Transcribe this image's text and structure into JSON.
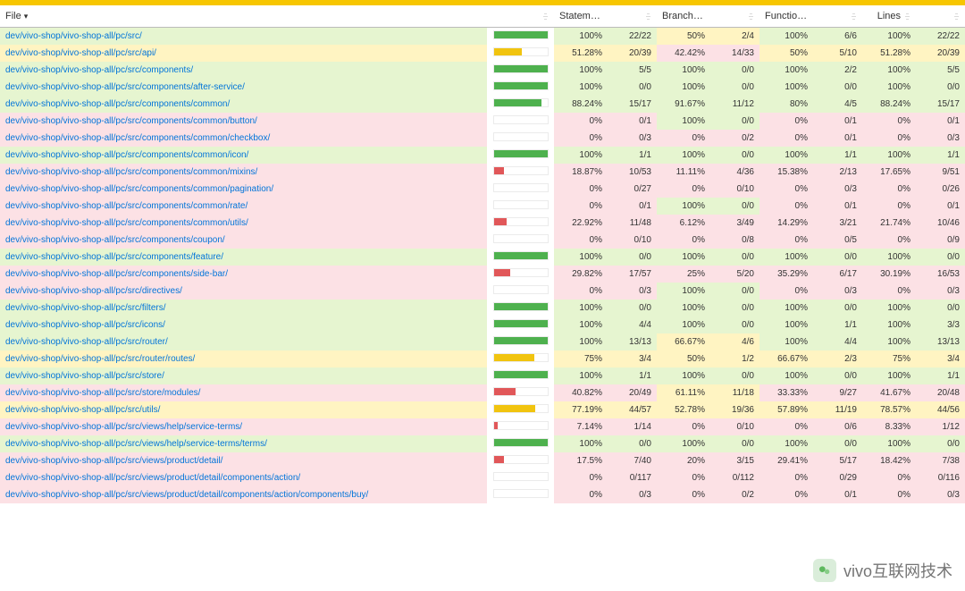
{
  "palette": {
    "high_bg": "#e6f5d0",
    "medium_bg": "#fff4c2",
    "low_bg": "#fce1e5",
    "bar_high": "#4eb14e",
    "bar_medium": "#f1c40f",
    "bar_low": "#e15759",
    "link": "#0074d9",
    "topbar": "#f7c600"
  },
  "thresholds": {
    "high": 80,
    "medium": 50
  },
  "columns": {
    "file": "File",
    "statements": "Statements",
    "branches": "Branches",
    "functions": "Functions",
    "lines": "Lines"
  },
  "sort_indicator": "▾",
  "rows": [
    {
      "file": "dev/vivo-shop/vivo-shop-all/pc/src/",
      "statements_pct": "100%",
      "statements_frac": "22/22",
      "branches_pct": "50%",
      "branches_frac": "2/4",
      "functions_pct": "100%",
      "functions_frac": "6/6",
      "lines_pct": "100%",
      "lines_frac": "22/22",
      "bar": 100,
      "cls": "high",
      "b_cls": "medium"
    },
    {
      "file": "dev/vivo-shop/vivo-shop-all/pc/src/api/",
      "statements_pct": "51.28%",
      "statements_frac": "20/39",
      "branches_pct": "42.42%",
      "branches_frac": "14/33",
      "functions_pct": "50%",
      "functions_frac": "5/10",
      "lines_pct": "51.28%",
      "lines_frac": "20/39",
      "bar": 51.28,
      "cls": "medium",
      "b_cls": "low"
    },
    {
      "file": "dev/vivo-shop/vivo-shop-all/pc/src/components/",
      "statements_pct": "100%",
      "statements_frac": "5/5",
      "branches_pct": "100%",
      "branches_frac": "0/0",
      "functions_pct": "100%",
      "functions_frac": "2/2",
      "lines_pct": "100%",
      "lines_frac": "5/5",
      "bar": 100,
      "cls": "high"
    },
    {
      "file": "dev/vivo-shop/vivo-shop-all/pc/src/components/after-service/",
      "statements_pct": "100%",
      "statements_frac": "0/0",
      "branches_pct": "100%",
      "branches_frac": "0/0",
      "functions_pct": "100%",
      "functions_frac": "0/0",
      "lines_pct": "100%",
      "lines_frac": "0/0",
      "bar": 100,
      "cls": "high"
    },
    {
      "file": "dev/vivo-shop/vivo-shop-all/pc/src/components/common/",
      "statements_pct": "88.24%",
      "statements_frac": "15/17",
      "branches_pct": "91.67%",
      "branches_frac": "11/12",
      "functions_pct": "80%",
      "functions_frac": "4/5",
      "lines_pct": "88.24%",
      "lines_frac": "15/17",
      "bar": 88.24,
      "cls": "high"
    },
    {
      "file": "dev/vivo-shop/vivo-shop-all/pc/src/components/common/button/",
      "statements_pct": "0%",
      "statements_frac": "0/1",
      "branches_pct": "100%",
      "branches_frac": "0/0",
      "functions_pct": "0%",
      "functions_frac": "0/1",
      "lines_pct": "0%",
      "lines_frac": "0/1",
      "bar": 0,
      "cls": "low",
      "b_cls": "high"
    },
    {
      "file": "dev/vivo-shop/vivo-shop-all/pc/src/components/common/checkbox/",
      "statements_pct": "0%",
      "statements_frac": "0/3",
      "branches_pct": "0%",
      "branches_frac": "0/2",
      "functions_pct": "0%",
      "functions_frac": "0/1",
      "lines_pct": "0%",
      "lines_frac": "0/3",
      "bar": 0,
      "cls": "low"
    },
    {
      "file": "dev/vivo-shop/vivo-shop-all/pc/src/components/common/icon/",
      "statements_pct": "100%",
      "statements_frac": "1/1",
      "branches_pct": "100%",
      "branches_frac": "0/0",
      "functions_pct": "100%",
      "functions_frac": "1/1",
      "lines_pct": "100%",
      "lines_frac": "1/1",
      "bar": 100,
      "cls": "high"
    },
    {
      "file": "dev/vivo-shop/vivo-shop-all/pc/src/components/common/mixins/",
      "statements_pct": "18.87%",
      "statements_frac": "10/53",
      "branches_pct": "11.11%",
      "branches_frac": "4/36",
      "functions_pct": "15.38%",
      "functions_frac": "2/13",
      "lines_pct": "17.65%",
      "lines_frac": "9/51",
      "bar": 18.87,
      "cls": "low"
    },
    {
      "file": "dev/vivo-shop/vivo-shop-all/pc/src/components/common/pagination/",
      "statements_pct": "0%",
      "statements_frac": "0/27",
      "branches_pct": "0%",
      "branches_frac": "0/10",
      "functions_pct": "0%",
      "functions_frac": "0/3",
      "lines_pct": "0%",
      "lines_frac": "0/26",
      "bar": 0,
      "cls": "low"
    },
    {
      "file": "dev/vivo-shop/vivo-shop-all/pc/src/components/common/rate/",
      "statements_pct": "0%",
      "statements_frac": "0/1",
      "branches_pct": "100%",
      "branches_frac": "0/0",
      "functions_pct": "0%",
      "functions_frac": "0/1",
      "lines_pct": "0%",
      "lines_frac": "0/1",
      "bar": 0,
      "cls": "low",
      "b_cls": "high"
    },
    {
      "file": "dev/vivo-shop/vivo-shop-all/pc/src/components/common/utils/",
      "statements_pct": "22.92%",
      "statements_frac": "11/48",
      "branches_pct": "6.12%",
      "branches_frac": "3/49",
      "functions_pct": "14.29%",
      "functions_frac": "3/21",
      "lines_pct": "21.74%",
      "lines_frac": "10/46",
      "bar": 22.92,
      "cls": "low"
    },
    {
      "file": "dev/vivo-shop/vivo-shop-all/pc/src/components/coupon/",
      "statements_pct": "0%",
      "statements_frac": "0/10",
      "branches_pct": "0%",
      "branches_frac": "0/8",
      "functions_pct": "0%",
      "functions_frac": "0/5",
      "lines_pct": "0%",
      "lines_frac": "0/9",
      "bar": 0,
      "cls": "low"
    },
    {
      "file": "dev/vivo-shop/vivo-shop-all/pc/src/components/feature/",
      "statements_pct": "100%",
      "statements_frac": "0/0",
      "branches_pct": "100%",
      "branches_frac": "0/0",
      "functions_pct": "100%",
      "functions_frac": "0/0",
      "lines_pct": "100%",
      "lines_frac": "0/0",
      "bar": 100,
      "cls": "high"
    },
    {
      "file": "dev/vivo-shop/vivo-shop-all/pc/src/components/side-bar/",
      "statements_pct": "29.82%",
      "statements_frac": "17/57",
      "branches_pct": "25%",
      "branches_frac": "5/20",
      "functions_pct": "35.29%",
      "functions_frac": "6/17",
      "lines_pct": "30.19%",
      "lines_frac": "16/53",
      "bar": 29.82,
      "cls": "low"
    },
    {
      "file": "dev/vivo-shop/vivo-shop-all/pc/src/directives/",
      "statements_pct": "0%",
      "statements_frac": "0/3",
      "branches_pct": "100%",
      "branches_frac": "0/0",
      "functions_pct": "0%",
      "functions_frac": "0/3",
      "lines_pct": "0%",
      "lines_frac": "0/3",
      "bar": 0,
      "cls": "low",
      "b_cls": "high"
    },
    {
      "file": "dev/vivo-shop/vivo-shop-all/pc/src/filters/",
      "statements_pct": "100%",
      "statements_frac": "0/0",
      "branches_pct": "100%",
      "branches_frac": "0/0",
      "functions_pct": "100%",
      "functions_frac": "0/0",
      "lines_pct": "100%",
      "lines_frac": "0/0",
      "bar": 100,
      "cls": "high"
    },
    {
      "file": "dev/vivo-shop/vivo-shop-all/pc/src/icons/",
      "statements_pct": "100%",
      "statements_frac": "4/4",
      "branches_pct": "100%",
      "branches_frac": "0/0",
      "functions_pct": "100%",
      "functions_frac": "1/1",
      "lines_pct": "100%",
      "lines_frac": "3/3",
      "bar": 100,
      "cls": "high"
    },
    {
      "file": "dev/vivo-shop/vivo-shop-all/pc/src/router/",
      "statements_pct": "100%",
      "statements_frac": "13/13",
      "branches_pct": "66.67%",
      "branches_frac": "4/6",
      "functions_pct": "100%",
      "functions_frac": "4/4",
      "lines_pct": "100%",
      "lines_frac": "13/13",
      "bar": 100,
      "cls": "high",
      "b_cls": "medium"
    },
    {
      "file": "dev/vivo-shop/vivo-shop-all/pc/src/router/routes/",
      "statements_pct": "75%",
      "statements_frac": "3/4",
      "branches_pct": "50%",
      "branches_frac": "1/2",
      "functions_pct": "66.67%",
      "functions_frac": "2/3",
      "lines_pct": "75%",
      "lines_frac": "3/4",
      "bar": 75,
      "cls": "medium"
    },
    {
      "file": "dev/vivo-shop/vivo-shop-all/pc/src/store/",
      "statements_pct": "100%",
      "statements_frac": "1/1",
      "branches_pct": "100%",
      "branches_frac": "0/0",
      "functions_pct": "100%",
      "functions_frac": "0/0",
      "lines_pct": "100%",
      "lines_frac": "1/1",
      "bar": 100,
      "cls": "high"
    },
    {
      "file": "dev/vivo-shop/vivo-shop-all/pc/src/store/modules/",
      "statements_pct": "40.82%",
      "statements_frac": "20/49",
      "branches_pct": "61.11%",
      "branches_frac": "11/18",
      "functions_pct": "33.33%",
      "functions_frac": "9/27",
      "lines_pct": "41.67%",
      "lines_frac": "20/48",
      "bar": 40.82,
      "cls": "low",
      "b_cls": "medium"
    },
    {
      "file": "dev/vivo-shop/vivo-shop-all/pc/src/utils/",
      "statements_pct": "77.19%",
      "statements_frac": "44/57",
      "branches_pct": "52.78%",
      "branches_frac": "19/36",
      "functions_pct": "57.89%",
      "functions_frac": "11/19",
      "lines_pct": "78.57%",
      "lines_frac": "44/56",
      "bar": 77.19,
      "cls": "medium"
    },
    {
      "file": "dev/vivo-shop/vivo-shop-all/pc/src/views/help/service-terms/",
      "statements_pct": "7.14%",
      "statements_frac": "1/14",
      "branches_pct": "0%",
      "branches_frac": "0/10",
      "functions_pct": "0%",
      "functions_frac": "0/6",
      "lines_pct": "8.33%",
      "lines_frac": "1/12",
      "bar": 7.14,
      "cls": "low"
    },
    {
      "file": "dev/vivo-shop/vivo-shop-all/pc/src/views/help/service-terms/terms/",
      "statements_pct": "100%",
      "statements_frac": "0/0",
      "branches_pct": "100%",
      "branches_frac": "0/0",
      "functions_pct": "100%",
      "functions_frac": "0/0",
      "lines_pct": "100%",
      "lines_frac": "0/0",
      "bar": 100,
      "cls": "high"
    },
    {
      "file": "dev/vivo-shop/vivo-shop-all/pc/src/views/product/detail/",
      "statements_pct": "17.5%",
      "statements_frac": "7/40",
      "branches_pct": "20%",
      "branches_frac": "3/15",
      "functions_pct": "29.41%",
      "functions_frac": "5/17",
      "lines_pct": "18.42%",
      "lines_frac": "7/38",
      "bar": 17.5,
      "cls": "low"
    },
    {
      "file": "dev/vivo-shop/vivo-shop-all/pc/src/views/product/detail/components/action/",
      "statements_pct": "0%",
      "statements_frac": "0/117",
      "branches_pct": "0%",
      "branches_frac": "0/112",
      "functions_pct": "0%",
      "functions_frac": "0/29",
      "lines_pct": "0%",
      "lines_frac": "0/116",
      "bar": 0,
      "cls": "low"
    },
    {
      "file": "dev/vivo-shop/vivo-shop-all/pc/src/views/product/detail/components/action/components/buy/",
      "statements_pct": "0%",
      "statements_frac": "0/3",
      "branches_pct": "0%",
      "branches_frac": "0/2",
      "functions_pct": "0%",
      "functions_frac": "0/1",
      "lines_pct": "0%",
      "lines_frac": "0/3",
      "bar": 0,
      "cls": "low"
    }
  ],
  "watermark": "vivo互联网技术"
}
